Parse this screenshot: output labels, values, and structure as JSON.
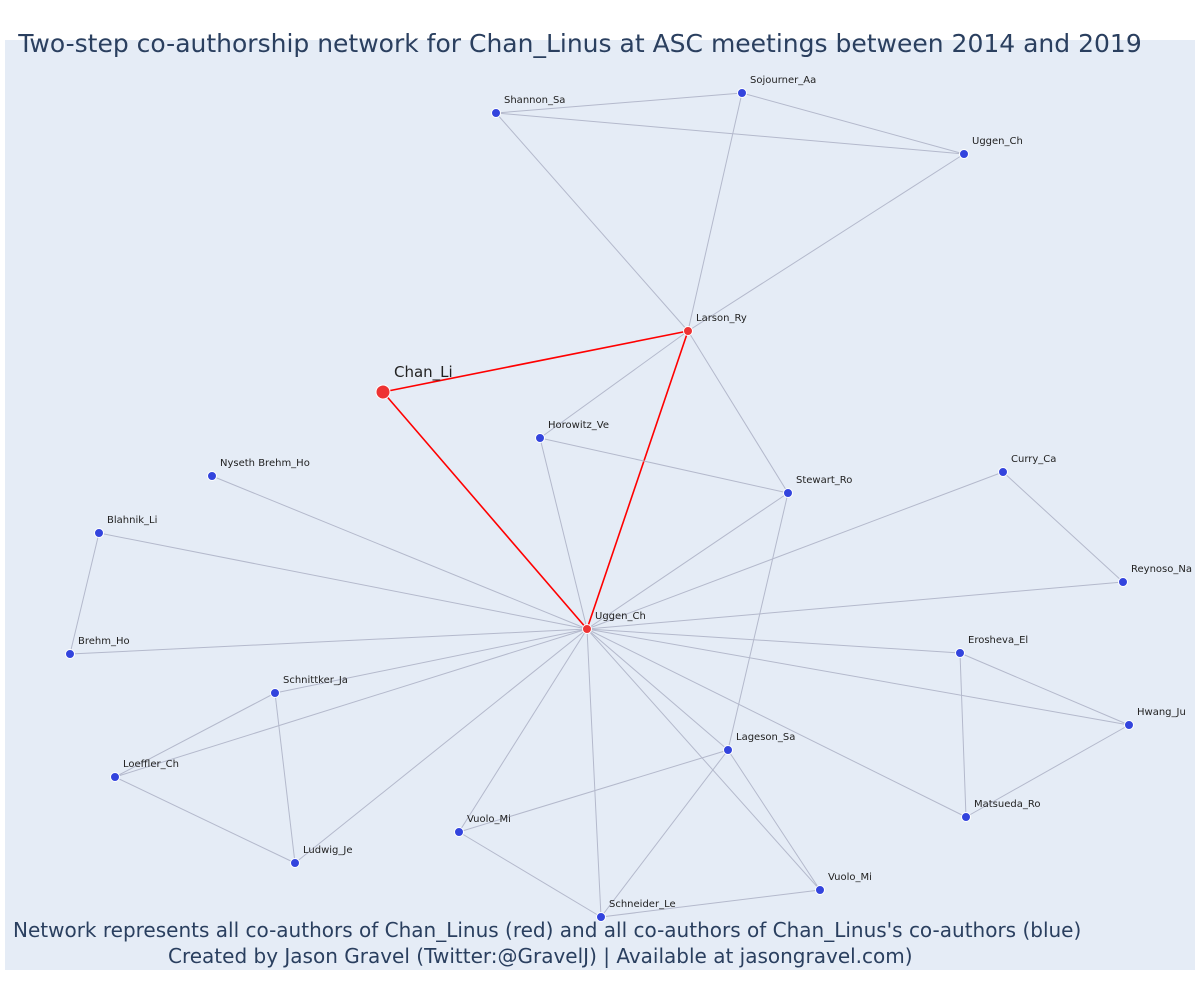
{
  "title": "Two-step co-authorship network for Chan_Linus at ASC meetings between 2014 and 2019",
  "footer": {
    "line1": "Network represents all co-authors of Chan_Linus (red) and all co-authors of Chan_Linus's co-authors (blue)",
    "line2": "Created by Jason Gravel (Twitter:@GravelJ) | Available at jasongravel.com)"
  },
  "colors": {
    "background": "#e5ecf6",
    "edge": "#b4b9cc",
    "focus_edge": "#ff0000",
    "first_degree_node": "#ee3333",
    "second_degree_node": "#3344dd",
    "text": "#2a3f5f"
  },
  "nodes": [
    {
      "id": "chan",
      "label": "Chan_Li",
      "group": "focus"
    },
    {
      "id": "larson",
      "label": "Larson_Ry",
      "group": "coauthor"
    },
    {
      "id": "uggen_c",
      "label": "Uggen_Ch",
      "group": "coauthor"
    },
    {
      "id": "shannon",
      "label": "Shannon_Sa",
      "group": "second"
    },
    {
      "id": "sojourner",
      "label": "Sojourner_Aa",
      "group": "second"
    },
    {
      "id": "uggen_top",
      "label": "Uggen_Ch",
      "group": "second"
    },
    {
      "id": "horowitz",
      "label": "Horowitz_Ve",
      "group": "second"
    },
    {
      "id": "stewart",
      "label": "Stewart_Ro",
      "group": "second"
    },
    {
      "id": "nyseth",
      "label": "Nyseth Brehm_Ho",
      "group": "second"
    },
    {
      "id": "blahnik",
      "label": "Blahnik_Li",
      "group": "second"
    },
    {
      "id": "brehm",
      "label": "Brehm_Ho",
      "group": "second"
    },
    {
      "id": "curry",
      "label": "Curry_Ca",
      "group": "second"
    },
    {
      "id": "reynoso",
      "label": "Reynoso_Na",
      "group": "second"
    },
    {
      "id": "erosheva",
      "label": "Erosheva_El",
      "group": "second"
    },
    {
      "id": "hwang",
      "label": "Hwang_Ju",
      "group": "second"
    },
    {
      "id": "schnittker",
      "label": "Schnittker_Ja",
      "group": "second"
    },
    {
      "id": "loeffler",
      "label": "Loeffler_Ch",
      "group": "second"
    },
    {
      "id": "ludwig",
      "label": "Ludwig_Je",
      "group": "second"
    },
    {
      "id": "lageson",
      "label": "Lageson_Sa",
      "group": "second"
    },
    {
      "id": "matsueda",
      "label": "Matsueda_Ro",
      "group": "second"
    },
    {
      "id": "vuolo_l",
      "label": "Vuolo_Mi",
      "group": "second"
    },
    {
      "id": "vuolo_r",
      "label": "Vuolo_Mi",
      "group": "second"
    },
    {
      "id": "schneider",
      "label": "Schneider_Le",
      "group": "second"
    }
  ],
  "edges": [
    [
      "chan",
      "larson"
    ],
    [
      "chan",
      "uggen_c"
    ],
    [
      "larson",
      "uggen_c"
    ],
    [
      "shannon",
      "sojourner"
    ],
    [
      "shannon",
      "uggen_top"
    ],
    [
      "sojourner",
      "uggen_top"
    ],
    [
      "shannon",
      "larson"
    ],
    [
      "sojourner",
      "larson"
    ],
    [
      "uggen_top",
      "larson"
    ],
    [
      "larson",
      "horowitz"
    ],
    [
      "larson",
      "stewart"
    ],
    [
      "horowitz",
      "stewart"
    ],
    [
      "horowitz",
      "uggen_c"
    ],
    [
      "stewart",
      "uggen_c"
    ],
    [
      "stewart",
      "lageson"
    ],
    [
      "nyseth",
      "uggen_c"
    ],
    [
      "blahnik",
      "uggen_c"
    ],
    [
      "blahnik",
      "brehm"
    ],
    [
      "brehm",
      "uggen_c"
    ],
    [
      "curry",
      "uggen_c"
    ],
    [
      "curry",
      "reynoso"
    ],
    [
      "reynoso",
      "uggen_c"
    ],
    [
      "erosheva",
      "uggen_c"
    ],
    [
      "erosheva",
      "hwang"
    ],
    [
      "erosheva",
      "matsueda"
    ],
    [
      "hwang",
      "uggen_c"
    ],
    [
      "hwang",
      "matsueda"
    ],
    [
      "matsueda",
      "uggen_c"
    ],
    [
      "schnittker",
      "uggen_c"
    ],
    [
      "schnittker",
      "loeffler"
    ],
    [
      "schnittker",
      "ludwig"
    ],
    [
      "loeffler",
      "uggen_c"
    ],
    [
      "loeffler",
      "ludwig"
    ],
    [
      "ludwig",
      "uggen_c"
    ],
    [
      "lageson",
      "uggen_c"
    ],
    [
      "lageson",
      "vuolo_l"
    ],
    [
      "lageson",
      "vuolo_r"
    ],
    [
      "lageson",
      "schneider"
    ],
    [
      "vuolo_l",
      "uggen_c"
    ],
    [
      "vuolo_l",
      "schneider"
    ],
    [
      "vuolo_r",
      "uggen_c"
    ],
    [
      "vuolo_r",
      "schneider"
    ],
    [
      "schneider",
      "uggen_c"
    ]
  ]
}
